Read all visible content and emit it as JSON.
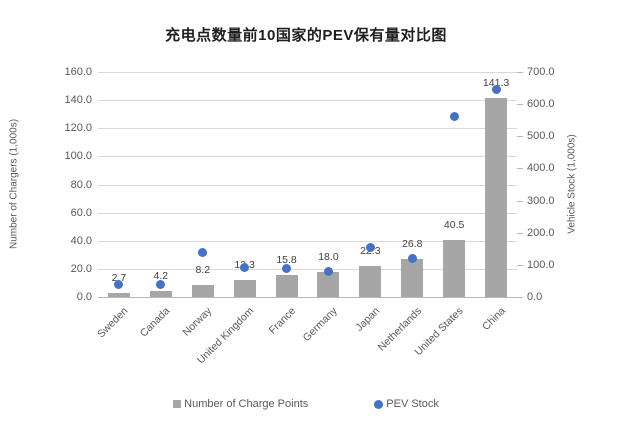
{
  "chart_data": {
    "type": "bar",
    "subtype": "combo-bar-scatter",
    "title": "充电点数量前10国家的PEV保有量对比图",
    "categories": [
      "Sweden",
      "Canada",
      "Norway",
      "United Kingdom",
      "France",
      "Germany",
      "Japan",
      "Netherlands",
      "United States",
      "China"
    ],
    "series": [
      {
        "name": "Number of Charge Points",
        "type": "bar",
        "axis": "left",
        "color": "#a6a6a6",
        "values": [
          2.7,
          4.2,
          8.2,
          12.3,
          15.8,
          18.0,
          22.3,
          26.8,
          40.5,
          141.3
        ],
        "data_labels": [
          "2.7",
          "4.2",
          "8.2",
          "12.3",
          "15.8",
          "18.0",
          "22.3",
          "26.8",
          "40.5",
          "141.3"
        ]
      },
      {
        "name": "PEV Stock",
        "type": "scatter",
        "axis": "right",
        "color": "#4472c4",
        "values": [
          38,
          38,
          138,
          92,
          89,
          79,
          155,
          120,
          563,
          647
        ],
        "values_note": "estimated from dot positions; no data labels shown"
      }
    ],
    "axes": {
      "left": {
        "title": "Number of Chargers (1,000s)",
        "min": 0,
        "max": 160,
        "step": 20,
        "decimals": 1
      },
      "right": {
        "title": "Vehicle Stock (1,000s)",
        "min": 0,
        "max": 700,
        "step": 100,
        "decimals": 1
      }
    },
    "legend": {
      "position": "bottom",
      "items": [
        {
          "label": "Number of Charge Points",
          "marker": "square",
          "color": "#a6a6a6"
        },
        {
          "label": "PEV Stock",
          "marker": "circle",
          "color": "#4472c4"
        }
      ]
    },
    "grid": true,
    "colors": {
      "background": "#ffffff",
      "gridline": "#d9d9d9",
      "axis_line": "#b7b7b7",
      "tick_label": "#595959",
      "data_label": "#404040",
      "title": "#1f1f1f"
    }
  }
}
